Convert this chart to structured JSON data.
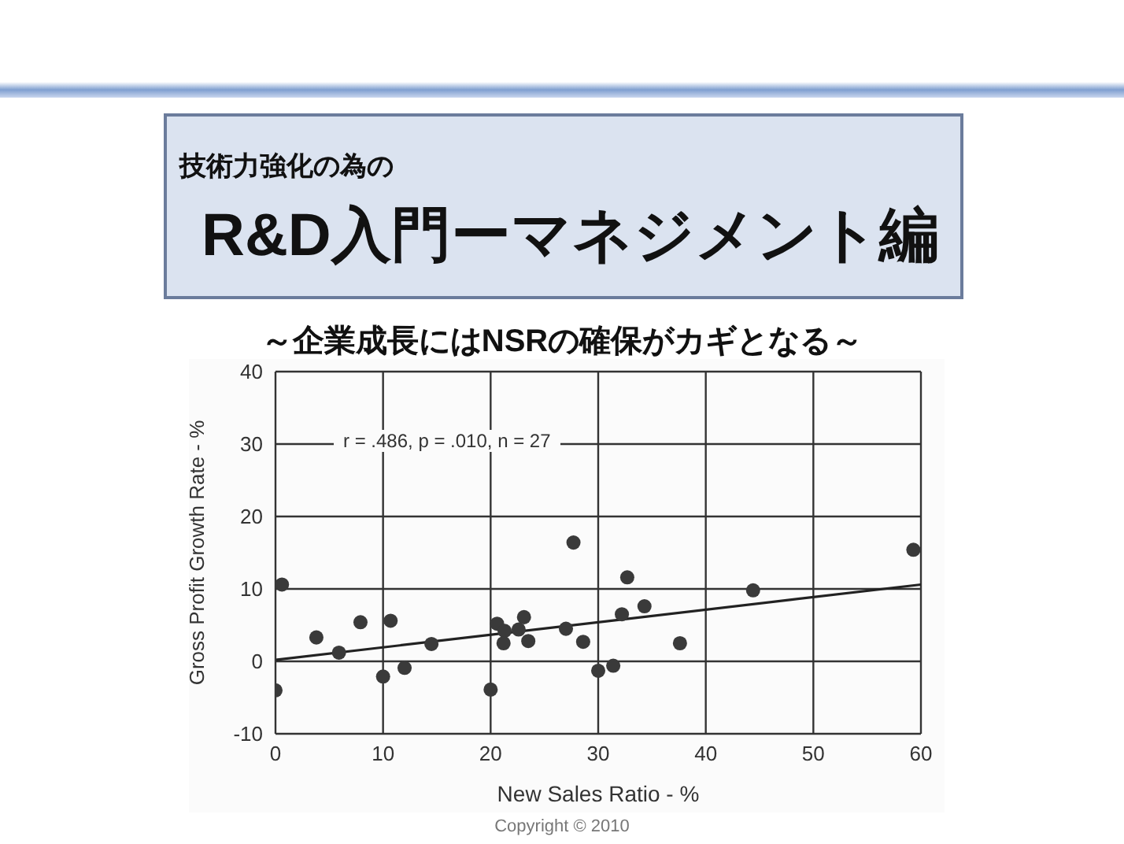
{
  "chart_data": {
    "type": "scatter",
    "title": "R&D入門ーマネジメント編",
    "subtitle": "～企業成長にはNSRの確保がカギとなる～",
    "xlabel": "New Sales Ratio - %",
    "ylabel": "Gross Profit Growth Rate - %",
    "annotations": [
      "技術力強化の為の",
      "r = .486, p = .010, n = 27",
      "Copyright  © 2010"
    ],
    "series": [
      {
        "color": "#3a3a3a",
        "marker": "circle",
        "x": [
          0,
          0.6,
          3.8,
          5.9,
          7.9,
          10.0,
          10.7,
          12.0,
          14.5,
          20.0,
          20.6,
          21.3,
          21.2,
          22.6,
          23.1,
          23.5,
          27.0,
          27.7,
          28.6,
          30.0,
          31.4,
          32.2,
          32.7,
          34.3,
          37.6,
          44.4,
          59.3
        ],
        "values": [
          -4.0,
          10.6,
          3.3,
          1.2,
          5.4,
          -2.1,
          5.6,
          -0.9,
          2.4,
          -3.9,
          5.2,
          4.2,
          2.5,
          4.4,
          6.1,
          2.8,
          4.5,
          16.4,
          2.7,
          -1.3,
          -0.6,
          6.5,
          11.6,
          7.6,
          2.5,
          9.8,
          15.4
        ]
      },
      {
        "type": "line",
        "color": "#222222",
        "marker": "none",
        "x": [
          0,
          60
        ],
        "values": [
          0.2,
          10.6
        ]
      }
    ],
    "xlim": [
      0,
      60
    ],
    "xticks": [
      0,
      10,
      20,
      30,
      40,
      50,
      60
    ],
    "ylim": [
      -10,
      40
    ],
    "yticks": [
      -10,
      0,
      10,
      20,
      30,
      40
    ],
    "grid": true
  }
}
